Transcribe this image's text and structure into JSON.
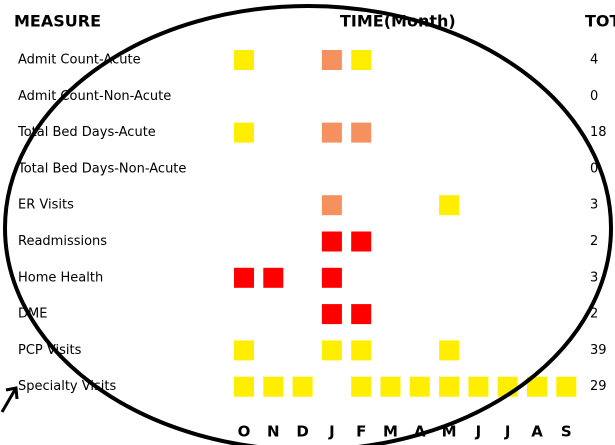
{
  "header": {
    "measure": "MEASURE",
    "time": "TIME(Month)",
    "total": "TOT"
  },
  "months": [
    "O",
    "N",
    "D",
    "J",
    "F",
    "M",
    "A",
    "M",
    "J",
    "J",
    "A",
    "S"
  ],
  "rows": [
    {
      "label": "Admit Count-Acute",
      "total": "4",
      "cells": [
        "#ffee00",
        null,
        null,
        "#f4915e",
        "#ffee00",
        null,
        null,
        null,
        null,
        null,
        null,
        null
      ]
    },
    {
      "label": "Admit Count-Non-Acute",
      "total": "0",
      "cells": [
        null,
        null,
        null,
        null,
        null,
        null,
        null,
        null,
        null,
        null,
        null,
        null
      ]
    },
    {
      "label": "Total Bed Days-Acute",
      "total": "18",
      "cells": [
        "#ffee00",
        null,
        null,
        "#f4915e",
        "#f4915e",
        null,
        null,
        null,
        null,
        null,
        null,
        null
      ]
    },
    {
      "label": "Total Bed Days-Non-Acute",
      "total": "0",
      "cells": [
        null,
        null,
        null,
        null,
        null,
        null,
        null,
        null,
        null,
        null,
        null,
        null
      ]
    },
    {
      "label": "ER Visits",
      "total": "3",
      "cells": [
        null,
        null,
        null,
        "#f4915e",
        null,
        null,
        null,
        "#ffee00",
        null,
        null,
        null,
        null
      ]
    },
    {
      "label": "Readmissions",
      "total": "2",
      "cells": [
        null,
        null,
        null,
        "#ff0000",
        "#ff0000",
        null,
        null,
        null,
        null,
        null,
        null,
        null
      ]
    },
    {
      "label": "Home Health",
      "total": "3",
      "cells": [
        "#ff0000",
        "#ff0000",
        null,
        "#ff0000",
        null,
        null,
        null,
        null,
        null,
        null,
        null,
        null
      ]
    },
    {
      "label": "DME",
      "total": "2",
      "cells": [
        null,
        null,
        null,
        "#ff0000",
        "#ff0000",
        null,
        null,
        null,
        null,
        null,
        null,
        null
      ]
    },
    {
      "label": "PCP Visits",
      "total": "39",
      "cells": [
        "#ffee00",
        null,
        null,
        "#ffee00",
        "#ffee00",
        null,
        null,
        "#ffee00",
        null,
        null,
        null,
        null
      ]
    },
    {
      "label": "Specialty Visits",
      "total": "29",
      "cells": [
        "#ffee00",
        "#ffee00",
        "#ffee00",
        null,
        "#ffee00",
        "#ffee00",
        "#ffee00",
        "#ffee00",
        "#ffee00",
        "#ffee00",
        "#ffee00",
        "#ffee00"
      ]
    }
  ]
}
